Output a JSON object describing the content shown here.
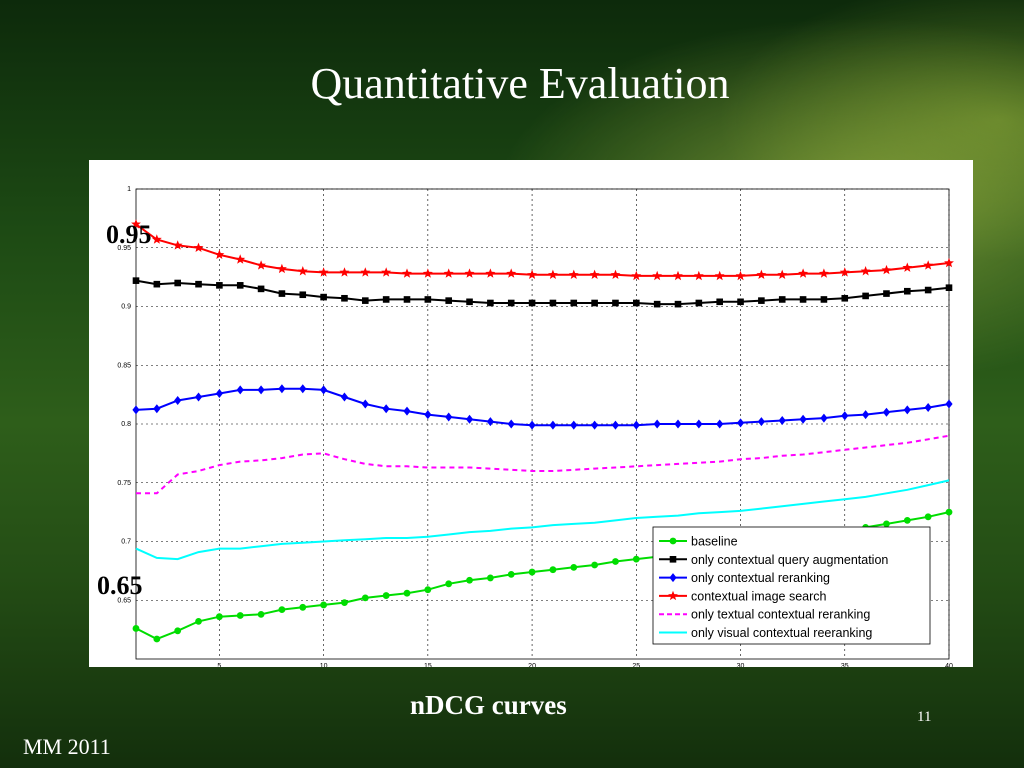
{
  "slide": {
    "title": "Quantitative Evaluation",
    "caption": "nDCG curves",
    "page_number": "11",
    "footer": "MM 2011",
    "callouts": [
      "0.95",
      "0.65"
    ]
  },
  "chart_data": {
    "type": "line",
    "xlim": [
      1,
      40
    ],
    "ylim": [
      0.6,
      1
    ],
    "x_ticks": [
      5,
      10,
      15,
      20,
      25,
      30,
      35,
      40
    ],
    "y_ticks": [
      0.65,
      0.7,
      0.75,
      0.8,
      0.85,
      0.9,
      0.95,
      1
    ],
    "y_tick_labels": [
      "0.65",
      "0.7",
      "0.75",
      "0.8",
      "0.85",
      "0.9",
      "0.95",
      "1"
    ],
    "grid": true,
    "legend_position": "bottom-right",
    "x": [
      1,
      2,
      3,
      4,
      5,
      6,
      7,
      8,
      9,
      10,
      11,
      12,
      13,
      14,
      15,
      16,
      17,
      18,
      19,
      20,
      21,
      22,
      23,
      24,
      25,
      26,
      27,
      28,
      29,
      30,
      31,
      32,
      33,
      34,
      35,
      36,
      37,
      38,
      39,
      40
    ],
    "series": [
      {
        "name": "baseline",
        "color": "#00dd00",
        "marker": "circle",
        "style": "solid",
        "values": [
          0.626,
          0.617,
          0.624,
          0.632,
          0.636,
          0.637,
          0.638,
          0.642,
          0.644,
          0.646,
          0.648,
          0.652,
          0.654,
          0.656,
          0.659,
          0.664,
          0.667,
          0.669,
          0.672,
          0.674,
          0.676,
          0.678,
          0.68,
          0.683,
          0.685,
          0.687,
          0.689,
          0.69,
          0.692,
          0.693,
          0.696,
          0.698,
          0.702,
          0.705,
          0.709,
          0.712,
          0.715,
          0.718,
          0.721,
          0.725
        ]
      },
      {
        "name": "only contextual query augmentation",
        "color": "#000000",
        "marker": "square",
        "style": "solid",
        "values": [
          0.922,
          0.919,
          0.92,
          0.919,
          0.918,
          0.918,
          0.915,
          0.911,
          0.91,
          0.908,
          0.907,
          0.905,
          0.906,
          0.906,
          0.906,
          0.905,
          0.904,
          0.903,
          0.903,
          0.903,
          0.903,
          0.903,
          0.903,
          0.903,
          0.903,
          0.902,
          0.902,
          0.903,
          0.904,
          0.904,
          0.905,
          0.906,
          0.906,
          0.906,
          0.907,
          0.909,
          0.911,
          0.913,
          0.914,
          0.916
        ]
      },
      {
        "name": "only contextual reranking",
        "color": "#0000ff",
        "marker": "diamond",
        "style": "solid",
        "values": [
          0.812,
          0.813,
          0.82,
          0.823,
          0.826,
          0.829,
          0.829,
          0.83,
          0.83,
          0.829,
          0.823,
          0.817,
          0.813,
          0.811,
          0.808,
          0.806,
          0.804,
          0.802,
          0.8,
          0.799,
          0.799,
          0.799,
          0.799,
          0.799,
          0.799,
          0.8,
          0.8,
          0.8,
          0.8,
          0.801,
          0.802,
          0.803,
          0.804,
          0.805,
          0.807,
          0.808,
          0.81,
          0.812,
          0.814,
          0.817
        ]
      },
      {
        "name": "contextual image search",
        "color": "#ff0000",
        "marker": "star",
        "style": "solid",
        "values": [
          0.97,
          0.957,
          0.952,
          0.95,
          0.944,
          0.94,
          0.935,
          0.932,
          0.93,
          0.929,
          0.929,
          0.929,
          0.929,
          0.928,
          0.928,
          0.928,
          0.928,
          0.928,
          0.928,
          0.927,
          0.927,
          0.927,
          0.927,
          0.927,
          0.926,
          0.926,
          0.926,
          0.926,
          0.926,
          0.926,
          0.927,
          0.927,
          0.928,
          0.928,
          0.929,
          0.93,
          0.931,
          0.933,
          0.935,
          0.937
        ]
      },
      {
        "name": "only textual contextual reranking",
        "color": "#ff00ff",
        "marker": "none",
        "style": "dashed",
        "values": [
          0.741,
          0.741,
          0.757,
          0.76,
          0.765,
          0.768,
          0.769,
          0.771,
          0.774,
          0.775,
          0.77,
          0.766,
          0.764,
          0.764,
          0.763,
          0.763,
          0.763,
          0.762,
          0.761,
          0.76,
          0.76,
          0.761,
          0.762,
          0.763,
          0.764,
          0.765,
          0.766,
          0.767,
          0.768,
          0.77,
          0.771,
          0.773,
          0.774,
          0.776,
          0.778,
          0.78,
          0.782,
          0.784,
          0.787,
          0.79
        ]
      },
      {
        "name": "only visual contextual reeranking",
        "color": "#00ffff",
        "marker": "none",
        "style": "solid",
        "values": [
          0.694,
          0.686,
          0.685,
          0.691,
          0.694,
          0.694,
          0.696,
          0.698,
          0.699,
          0.7,
          0.701,
          0.702,
          0.703,
          0.703,
          0.704,
          0.706,
          0.708,
          0.709,
          0.711,
          0.712,
          0.714,
          0.715,
          0.716,
          0.718,
          0.72,
          0.721,
          0.722,
          0.724,
          0.725,
          0.726,
          0.728,
          0.73,
          0.732,
          0.734,
          0.736,
          0.738,
          0.741,
          0.744,
          0.748,
          0.752
        ]
      }
    ]
  }
}
